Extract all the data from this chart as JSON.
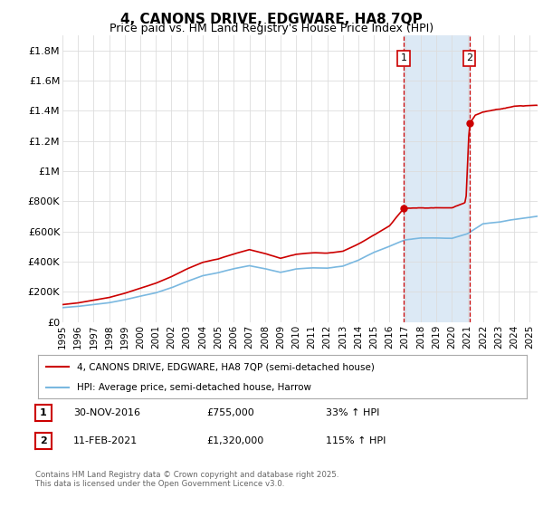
{
  "title": "4, CANONS DRIVE, EDGWARE, HA8 7QP",
  "subtitle": "Price paid vs. HM Land Registry's House Price Index (HPI)",
  "ylabel_ticks": [
    "£0",
    "£200K",
    "£400K",
    "£600K",
    "£800K",
    "£1M",
    "£1.2M",
    "£1.4M",
    "£1.6M",
    "£1.8M"
  ],
  "ytick_values": [
    0,
    200000,
    400000,
    600000,
    800000,
    1000000,
    1200000,
    1400000,
    1600000,
    1800000
  ],
  "ylim": [
    0,
    1900000
  ],
  "xlim_start": 1995.0,
  "xlim_end": 2025.5,
  "hpi_color": "#7ab8e0",
  "price_color": "#cc0000",
  "vline_color": "#cc0000",
  "shade_color": "#dce9f5",
  "sale1_year": 2016.917,
  "sale1_price": 755000,
  "sale2_year": 2021.117,
  "sale2_price": 1320000,
  "legend_label1": "4, CANONS DRIVE, EDGWARE, HA8 7QP (semi-detached house)",
  "legend_label2": "HPI: Average price, semi-detached house, Harrow",
  "annotation1": "1",
  "annotation2": "2",
  "table_row1": [
    "1",
    "30-NOV-2016",
    "£755,000",
    "33% ↑ HPI"
  ],
  "table_row2": [
    "2",
    "11-FEB-2021",
    "£1,320,000",
    "115% ↑ HPI"
  ],
  "footnote": "Contains HM Land Registry data © Crown copyright and database right 2025.\nThis data is licensed under the Open Government Licence v3.0.",
  "background_color": "#ffffff",
  "grid_color": "#dddddd",
  "title_fontsize": 11,
  "subtitle_fontsize": 9,
  "tick_fontsize": 8
}
